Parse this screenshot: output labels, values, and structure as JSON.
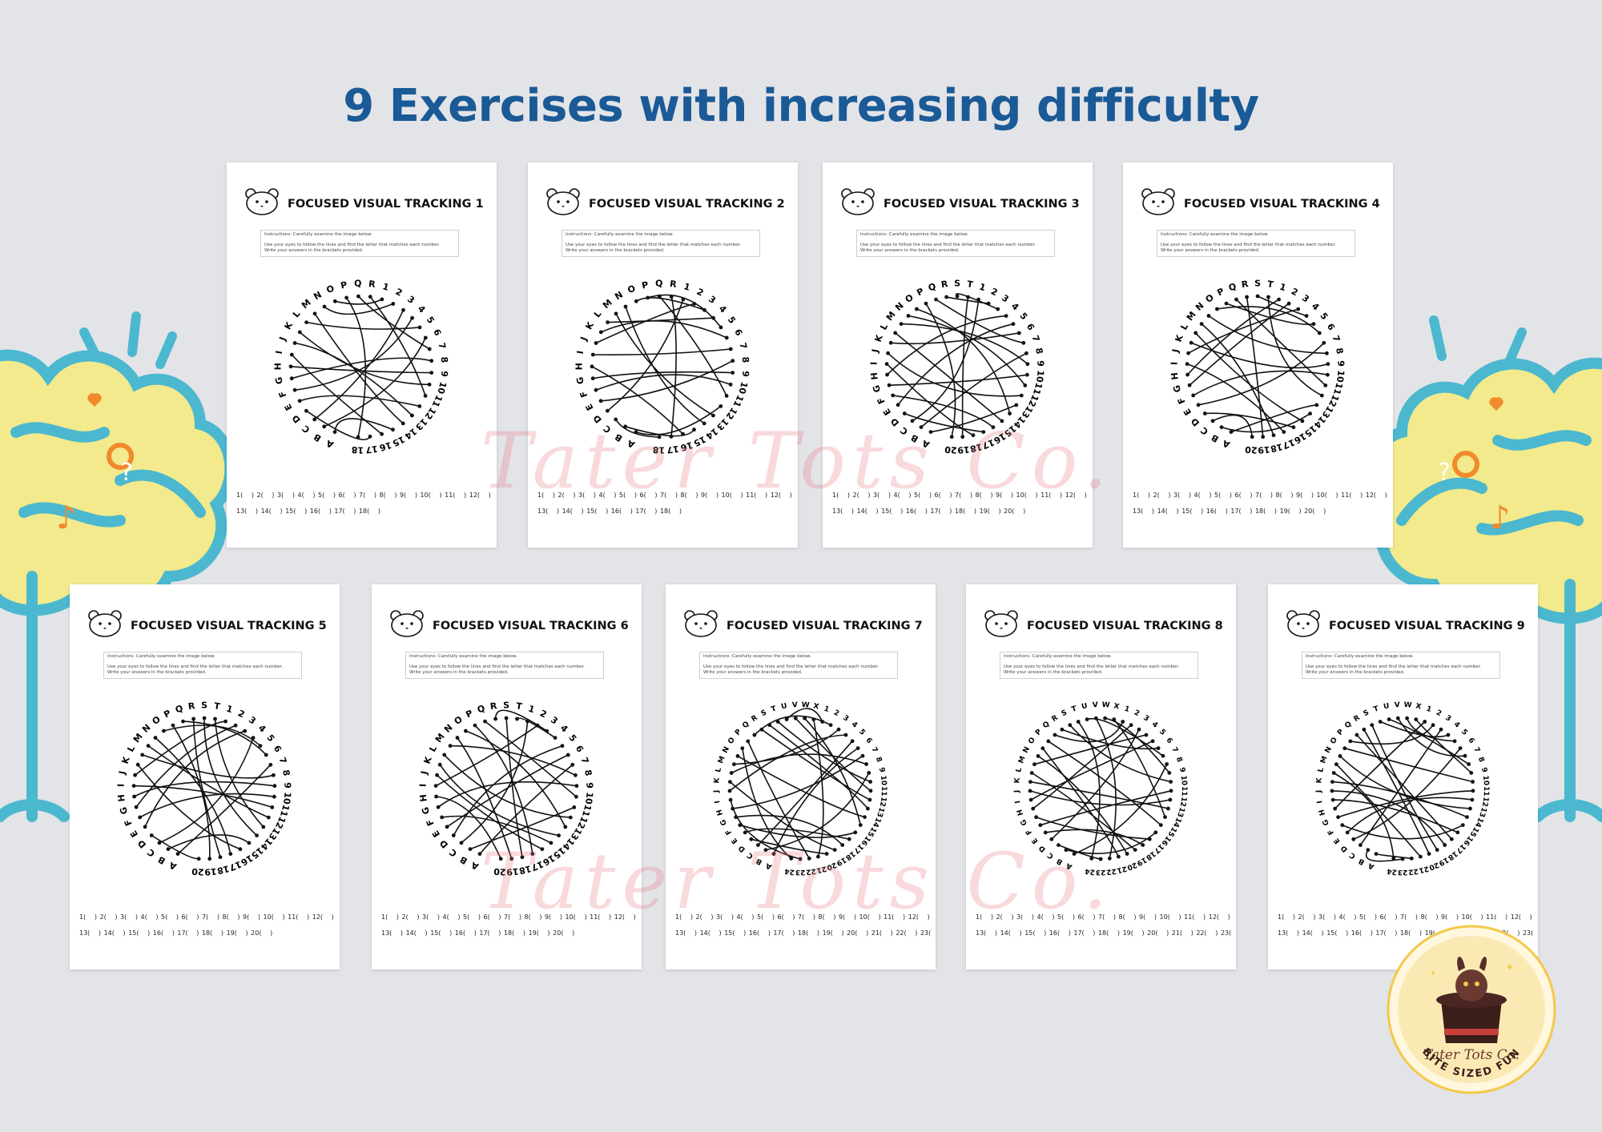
{
  "headline": "9 Exercises with increasing difficulty",
  "instructions": {
    "line1": "Instructions: Carefully examine the image below.",
    "line2": "Use your eyes to follow the lines and find the letter that matches each number.",
    "line3": "Write your answers in the brackets provided."
  },
  "worksheets": [
    {
      "title": "FOCUSED VISUAL TRACKING 1",
      "letters": "ABCDEFGHIJKLMNOPQR",
      "numbers": 18
    },
    {
      "title": "FOCUSED VISUAL TRACKING 2",
      "letters": "ABCDEFGHIJKLMNOPQR",
      "numbers": 18
    },
    {
      "title": "FOCUSED VISUAL TRACKING 3",
      "letters": "ABCDEFGHIJKLMNOPQRST",
      "numbers": 20
    },
    {
      "title": "FOCUSED VISUAL TRACKING 4",
      "letters": "ABCDEFGHIJKLMNOPQRST",
      "numbers": 20
    },
    {
      "title": "FOCUSED VISUAL TRACKING 5",
      "letters": "ABCDEFGHIJKLMNOPQRST",
      "numbers": 20
    },
    {
      "title": "FOCUSED VISUAL TRACKING 6",
      "letters": "ABCDEFGHIJKLMNOPQRST",
      "numbers": 20
    },
    {
      "title": "FOCUSED VISUAL TRACKING 7",
      "letters": "ABCDEFGHIJKLMNOPQRSTUVWX",
      "numbers": 24
    },
    {
      "title": "FOCUSED VISUAL TRACKING 8",
      "letters": "ABCDEFGHIJKLMNOPQRSTUVWX",
      "numbers": 24
    },
    {
      "title": "FOCUSED VISUAL TRACKING 9",
      "letters": "ABCDEFGHIJKLMNOPQRSTUVWX",
      "numbers": 24
    }
  ],
  "watermark": "Tater Tots Co.",
  "badge": {
    "name": "Tater Tots Co.",
    "tagline": "BITE SIZED FUN"
  },
  "colors": {
    "headline": "#1a5a96",
    "background": "#e3e4e8",
    "cloud_yellow": "#f2ea8c",
    "cloud_outline": "#4bb8cf",
    "icon_orange": "#f08a2c",
    "watermark": "#e77882",
    "badge_ring": "#f5c84a",
    "badge_fill": "#fbe9b4"
  }
}
